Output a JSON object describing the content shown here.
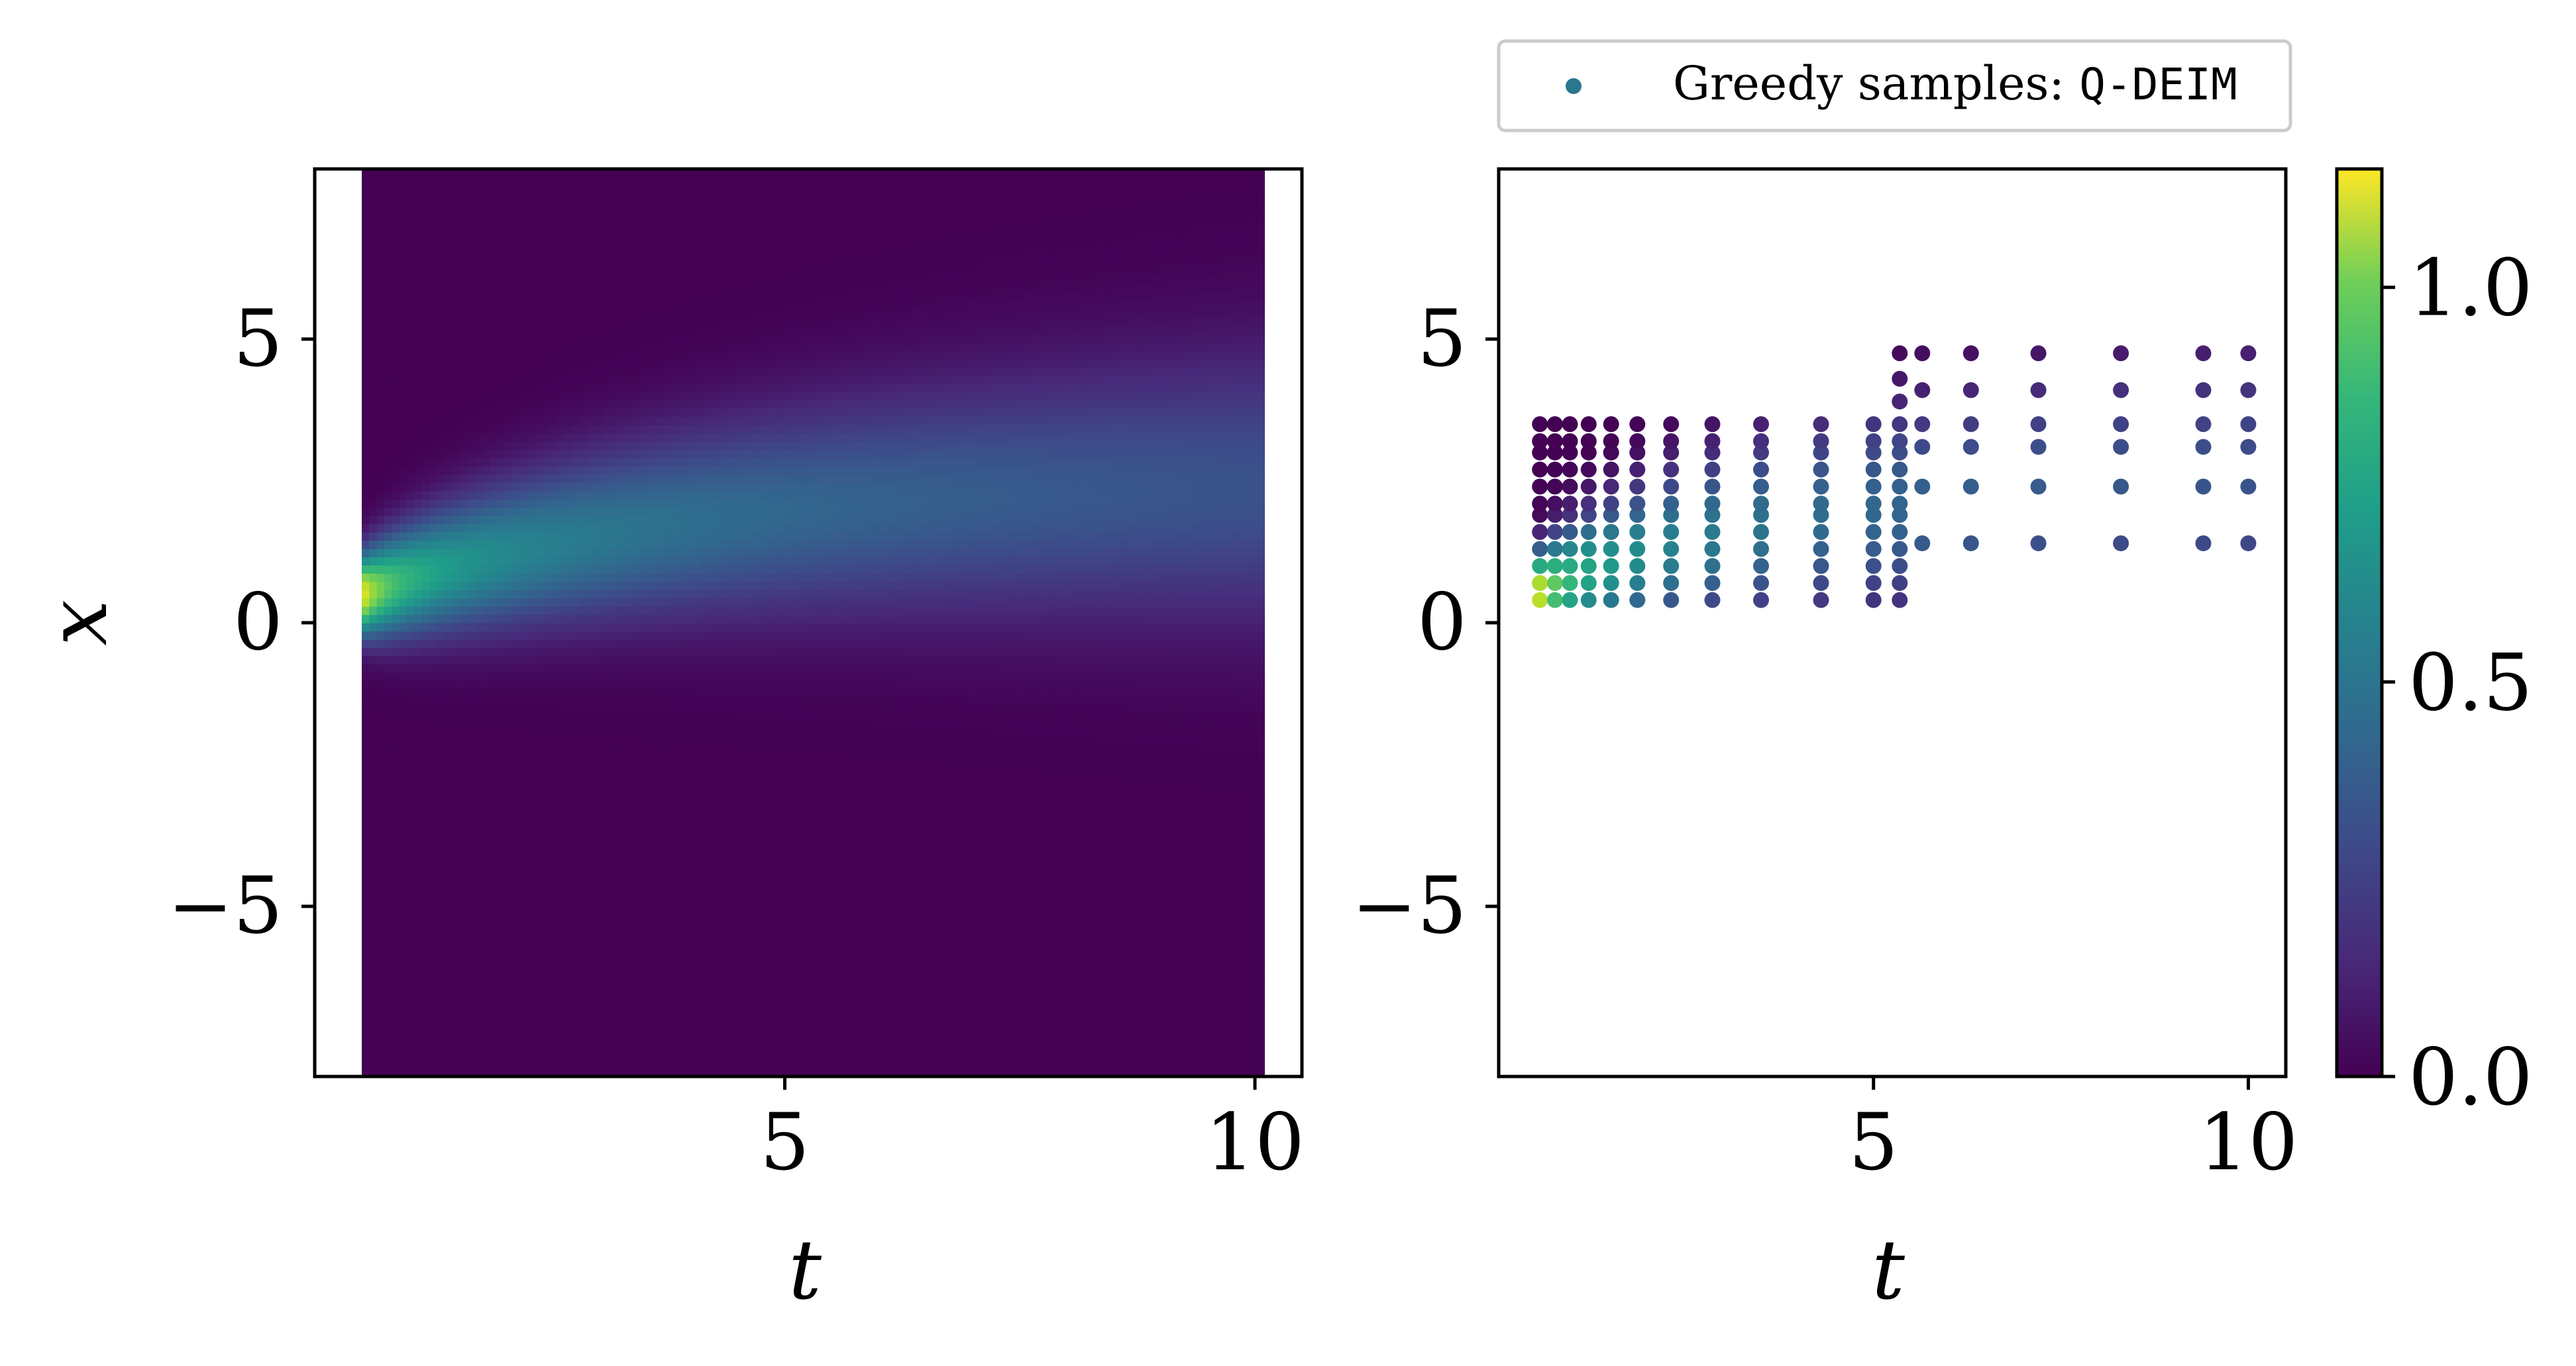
{
  "chart_data": [
    {
      "type": "heatmap",
      "panel": "left",
      "xlabel": "t",
      "ylabel": "x",
      "xlim": [
        0,
        10.5
      ],
      "ylim": [
        -8,
        8
      ],
      "x_ticks": [
        5,
        10
      ],
      "y_ticks": [
        5,
        0,
        -5
      ],
      "grid": false,
      "field": {
        "t_range": [
          0.5,
          10.1
        ],
        "x_range": [
          -8,
          8
        ],
        "description_of_values": "peak amplitude near x=0.5 at t=0.5 (~1.15), ridge drifting upward and spreading as t increases, ~0.35 at t=10 near x=2.5"
      }
    },
    {
      "type": "scatter",
      "panel": "right",
      "xlabel": "t",
      "xlim": [
        0,
        10.5
      ],
      "ylim": [
        -8,
        8
      ],
      "x_ticks": [
        5,
        10
      ],
      "y_ticks": [
        5,
        0,
        -5
      ],
      "grid": false,
      "legend": {
        "label_prefix": "Greedy samples: ",
        "label_code": "Q-DEIM",
        "marker_color": "#2a788e",
        "placement": "top"
      },
      "columns": [
        {
          "t": 0.55,
          "x": [
            0.4,
            0.7,
            1.0,
            1.3,
            1.6,
            1.9,
            2.1,
            2.4,
            2.7,
            3.0,
            3.2,
            3.5
          ]
        },
        {
          "t": 0.75,
          "x": [
            0.4,
            0.7,
            1.0,
            1.3,
            1.6,
            1.9,
            2.1,
            2.4,
            2.7,
            3.0,
            3.2,
            3.5
          ]
        },
        {
          "t": 0.95,
          "x": [
            0.4,
            0.7,
            1.0,
            1.3,
            1.6,
            1.9,
            2.1,
            2.4,
            2.7,
            3.0,
            3.2,
            3.5
          ]
        },
        {
          "t": 1.2,
          "x": [
            0.4,
            0.7,
            1.0,
            1.3,
            1.6,
            1.9,
            2.1,
            2.4,
            2.7,
            3.0,
            3.2,
            3.5
          ]
        },
        {
          "t": 1.5,
          "x": [
            0.4,
            0.7,
            1.0,
            1.3,
            1.6,
            1.9,
            2.1,
            2.4,
            2.7,
            3.0,
            3.2,
            3.5
          ]
        },
        {
          "t": 1.85,
          "x": [
            0.4,
            0.7,
            1.0,
            1.3,
            1.6,
            1.9,
            2.1,
            2.4,
            2.7,
            3.0,
            3.2,
            3.5
          ]
        },
        {
          "t": 2.3,
          "x": [
            0.4,
            0.7,
            1.0,
            1.3,
            1.6,
            1.9,
            2.1,
            2.4,
            2.7,
            3.0,
            3.2,
            3.5
          ]
        },
        {
          "t": 2.85,
          "x": [
            0.4,
            0.7,
            1.0,
            1.3,
            1.6,
            1.9,
            2.1,
            2.4,
            2.7,
            3.0,
            3.2,
            3.5
          ]
        },
        {
          "t": 3.5,
          "x": [
            0.4,
            0.7,
            1.0,
            1.3,
            1.6,
            1.9,
            2.1,
            2.4,
            2.7,
            3.0,
            3.2,
            3.5
          ]
        },
        {
          "t": 4.3,
          "x": [
            0.4,
            0.7,
            1.0,
            1.3,
            1.6,
            1.9,
            2.1,
            2.4,
            2.7,
            3.0,
            3.2,
            3.5
          ]
        },
        {
          "t": 5.0,
          "x": [
            0.4,
            0.7,
            1.0,
            1.3,
            1.6,
            1.9,
            2.1,
            2.4,
            2.7,
            3.0,
            3.2,
            3.5
          ]
        },
        {
          "t": 5.35,
          "x": [
            0.4,
            0.7,
            1.0,
            1.3,
            1.6,
            1.9,
            2.1,
            2.4,
            2.7,
            3.0,
            3.2,
            3.5,
            3.9,
            4.3,
            4.75
          ]
        },
        {
          "t": 5.65,
          "x": [
            1.4,
            2.4,
            3.1,
            3.5,
            4.1,
            4.75
          ]
        },
        {
          "t": 6.3,
          "x": [
            1.4,
            2.4,
            3.1,
            3.5,
            4.1,
            4.75
          ]
        },
        {
          "t": 7.2,
          "x": [
            1.4,
            2.4,
            3.1,
            3.5,
            4.1,
            4.75
          ]
        },
        {
          "t": 8.3,
          "x": [
            1.4,
            2.4,
            3.1,
            3.5,
            4.1,
            4.75
          ]
        },
        {
          "t": 9.4,
          "x": [
            1.4,
            2.4,
            3.1,
            3.5,
            4.1,
            4.75
          ]
        },
        {
          "t": 10.0,
          "x": [
            1.4,
            2.4,
            3.1,
            3.5,
            4.1,
            4.75
          ]
        }
      ],
      "value_model": "color from the same field as the heatmap"
    }
  ],
  "colorbar": {
    "colormap": "viridis",
    "range": [
      0,
      1.15
    ],
    "ticks": [
      "0.0",
      "0.5",
      "1.0"
    ],
    "tick_values": [
      0.0,
      0.5,
      1.0
    ]
  }
}
